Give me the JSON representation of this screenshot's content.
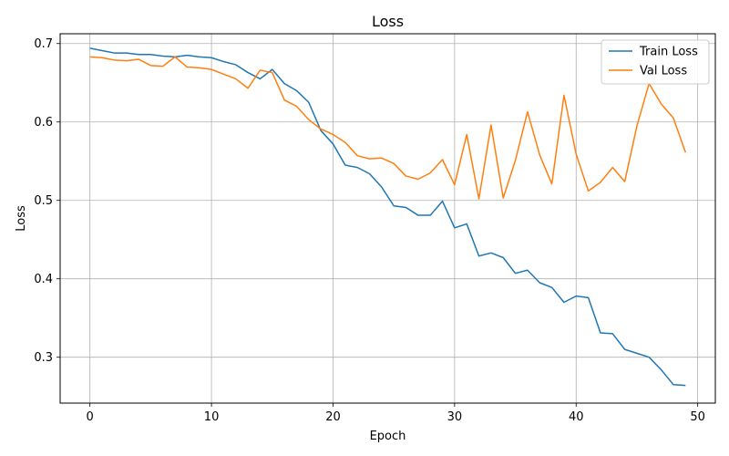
{
  "chart_data": {
    "type": "line",
    "title": "Loss",
    "xlabel": "Epoch",
    "ylabel": "Loss",
    "xlim": [
      -2.45,
      51.45
    ],
    "ylim": [
      0.2415,
      0.7125
    ],
    "xticks": [
      0,
      10,
      20,
      30,
      40,
      50
    ],
    "yticks": [
      0.3,
      0.4,
      0.5,
      0.6,
      0.7
    ],
    "xtick_labels": [
      "0",
      "10",
      "20",
      "30",
      "40",
      "50"
    ],
    "ytick_labels": [
      "0.3",
      "0.4",
      "0.5",
      "0.6",
      "0.7"
    ],
    "grid": true,
    "legend_position": "top-right",
    "x": [
      0,
      1,
      2,
      3,
      4,
      5,
      6,
      7,
      8,
      9,
      10,
      11,
      12,
      13,
      14,
      15,
      16,
      17,
      18,
      19,
      20,
      21,
      22,
      23,
      24,
      25,
      26,
      27,
      28,
      29,
      30,
      31,
      32,
      33,
      34,
      35,
      36,
      37,
      38,
      39,
      40,
      41,
      42,
      43,
      44,
      45,
      46,
      47,
      48,
      49
    ],
    "series": [
      {
        "name": "Train Loss",
        "color": "#1f77b4",
        "values": [
          0.694,
          0.691,
          0.688,
          0.688,
          0.686,
          0.686,
          0.684,
          0.683,
          0.685,
          0.683,
          0.682,
          0.677,
          0.673,
          0.663,
          0.655,
          0.667,
          0.649,
          0.64,
          0.625,
          0.589,
          0.572,
          0.545,
          0.542,
          0.534,
          0.517,
          0.493,
          0.491,
          0.481,
          0.481,
          0.499,
          0.465,
          0.47,
          0.429,
          0.433,
          0.427,
          0.407,
          0.411,
          0.395,
          0.389,
          0.37,
          0.378,
          0.376,
          0.331,
          0.33,
          0.31,
          0.305,
          0.3,
          0.284,
          0.265,
          0.264
        ]
      },
      {
        "name": "Val Loss",
        "color": "#ff7f0e",
        "values": [
          0.683,
          0.682,
          0.679,
          0.678,
          0.68,
          0.672,
          0.671,
          0.683,
          0.67,
          0.669,
          0.667,
          0.661,
          0.655,
          0.643,
          0.666,
          0.663,
          0.628,
          0.62,
          0.603,
          0.591,
          0.584,
          0.574,
          0.557,
          0.553,
          0.554,
          0.547,
          0.531,
          0.527,
          0.535,
          0.552,
          0.52,
          0.584,
          0.502,
          0.596,
          0.503,
          0.551,
          0.613,
          0.558,
          0.521,
          0.634,
          0.559,
          0.512,
          0.523,
          0.542,
          0.524,
          0.595,
          0.649,
          0.623,
          0.605,
          0.561
        ]
      }
    ]
  }
}
